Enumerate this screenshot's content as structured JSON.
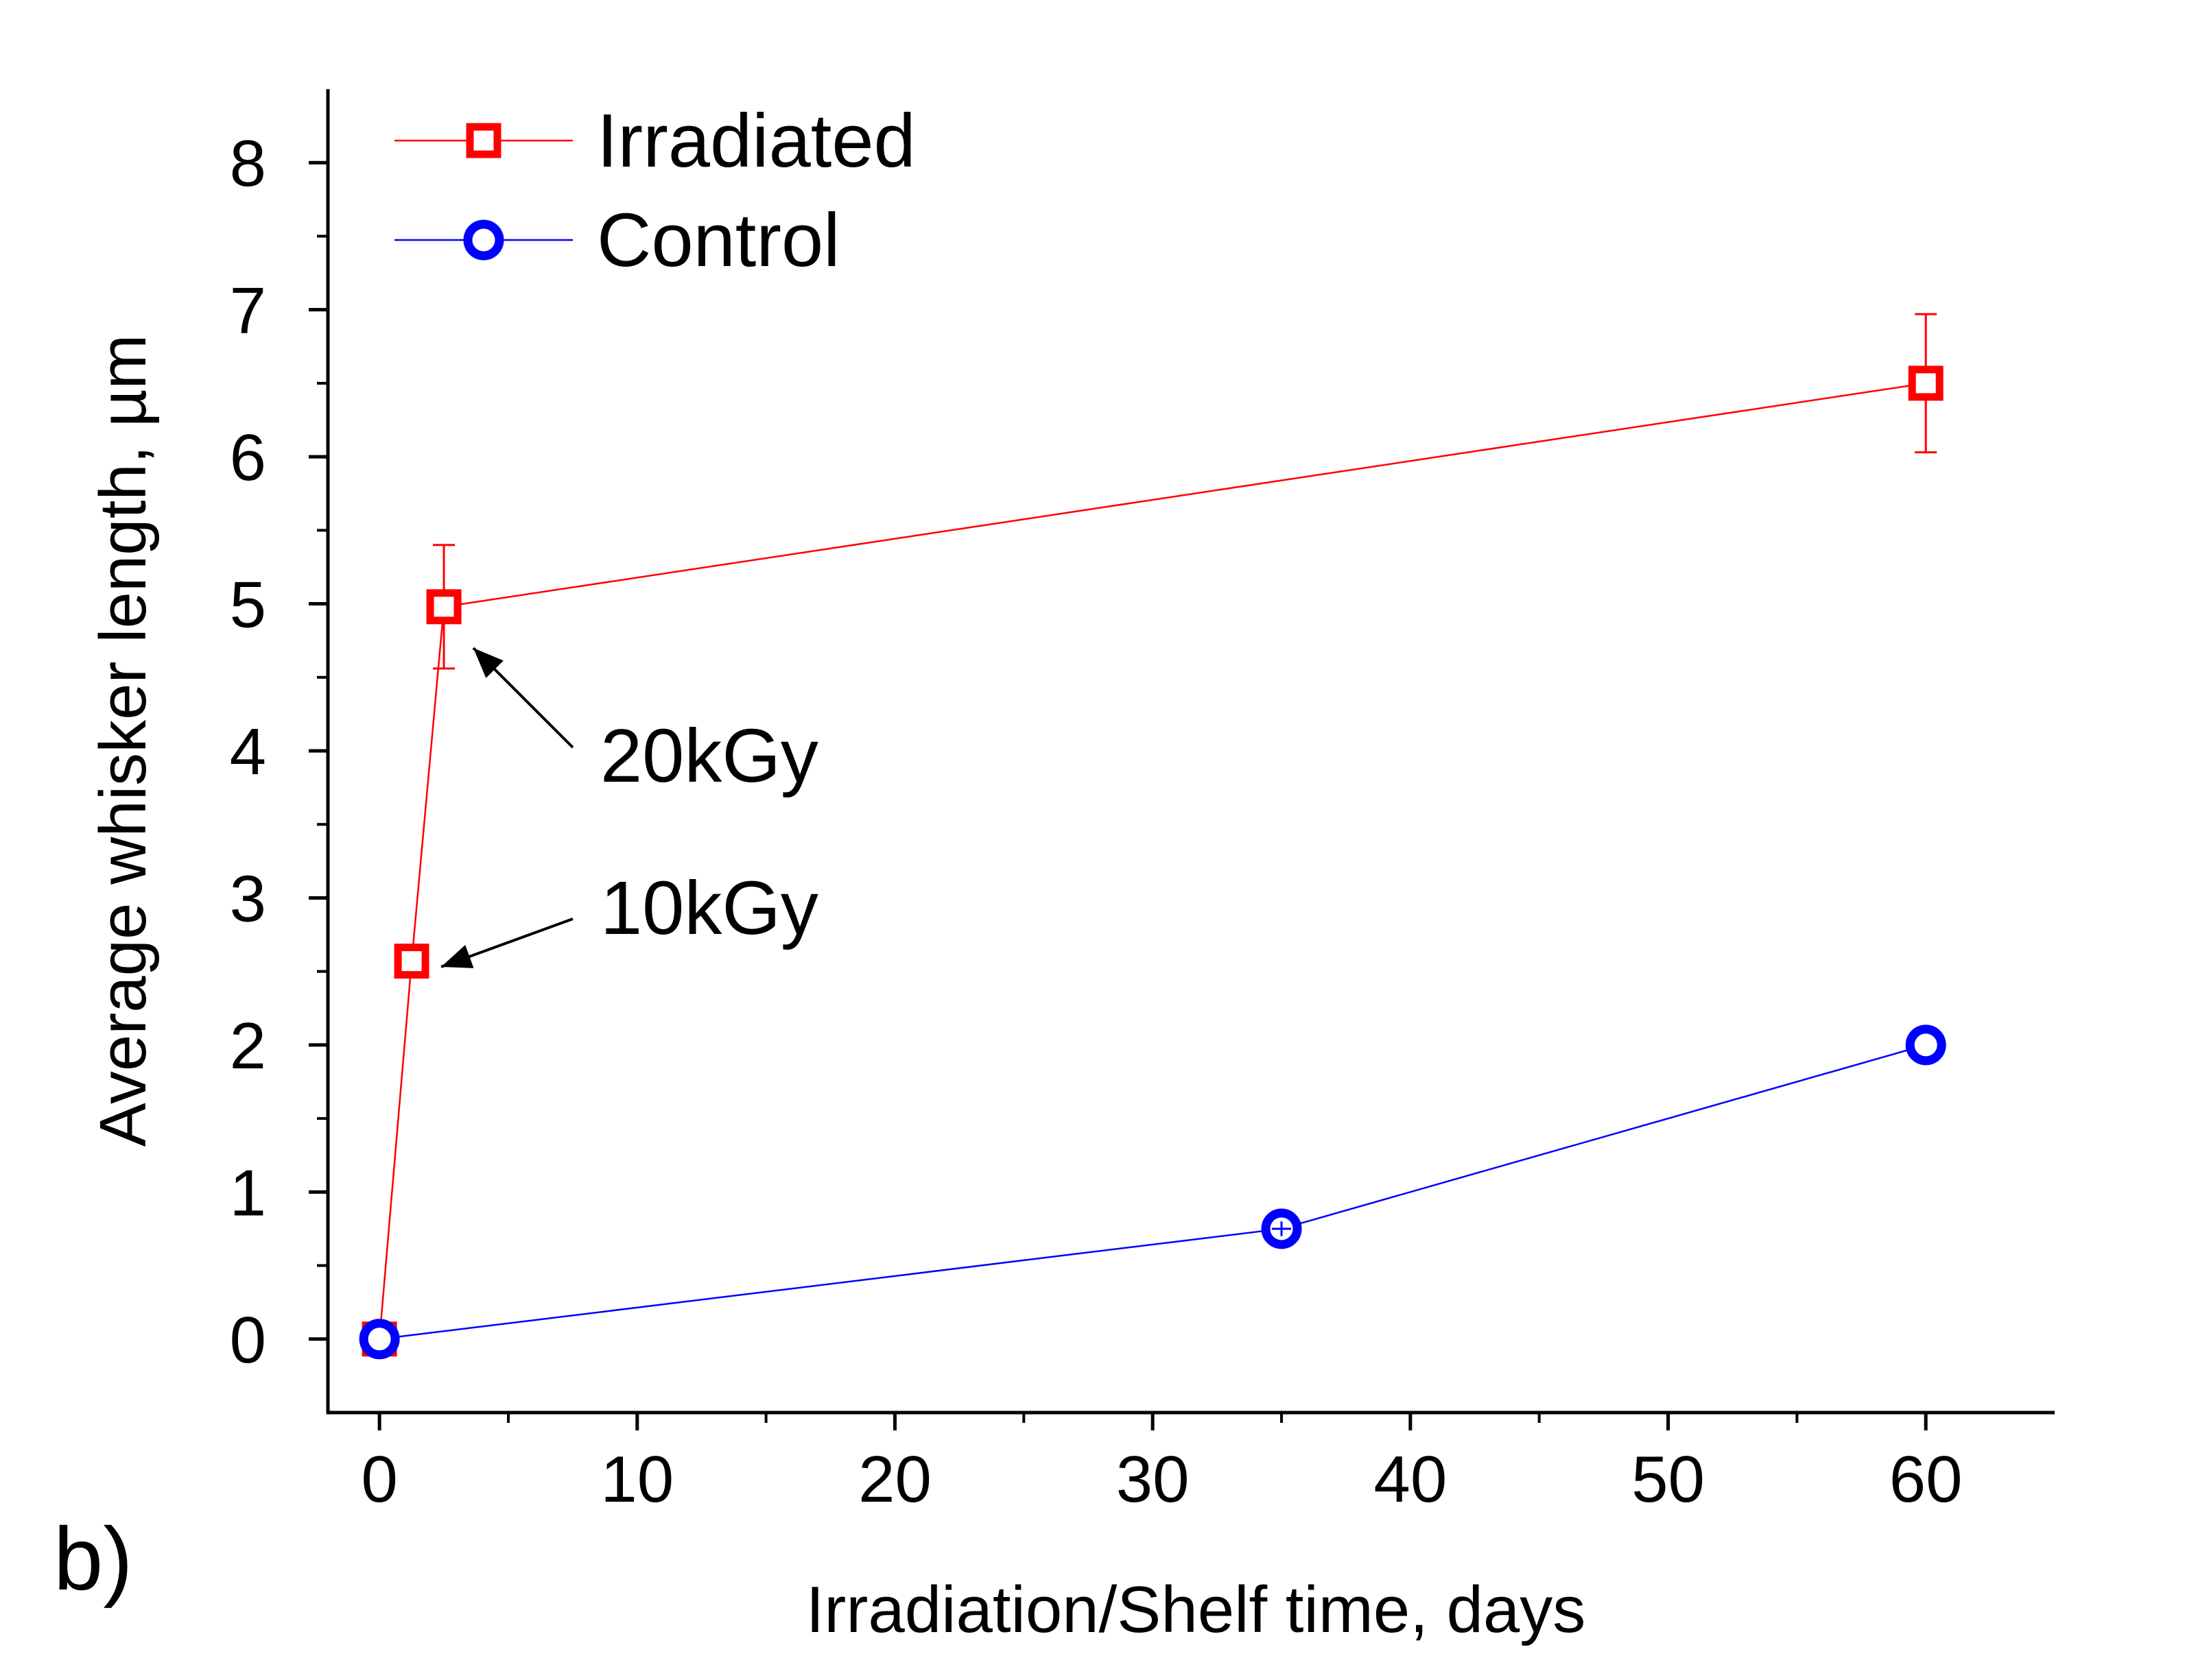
{
  "panel_label": "b)",
  "chart_data": {
    "type": "line",
    "xlabel": "Irradiation/Shelf time, days",
    "ylabel": "Average whisker length, µm",
    "xlim": [
      -2,
      65
    ],
    "ylim": [
      -0.5,
      8.5
    ],
    "x_major_ticks": [
      0,
      10,
      20,
      30,
      40,
      50,
      60
    ],
    "x_tick_labels": [
      "0",
      "10",
      "20",
      "30",
      "40",
      "50",
      "60"
    ],
    "x_minor_ticks": [
      5,
      15,
      25,
      35,
      45,
      55
    ],
    "y_major_ticks": [
      0,
      1,
      2,
      3,
      4,
      5,
      6,
      7,
      8
    ],
    "y_tick_labels": [
      "0",
      "1",
      "2",
      "3",
      "4",
      "5",
      "6",
      "7",
      "8"
    ],
    "y_minor_ticks": [
      0.5,
      1.5,
      2.5,
      3.5,
      4.5,
      5.5,
      6.5,
      7.5
    ],
    "legend_position": "top-left",
    "series": [
      {
        "name": "Irradiated",
        "marker": "square",
        "color": "#ff0000",
        "points": [
          {
            "x": 0,
            "y": 0,
            "err": 0
          },
          {
            "x": 1.25,
            "y": 2.57,
            "err": 0
          },
          {
            "x": 2.5,
            "y": 4.98,
            "err": 0.42
          },
          {
            "x": 60,
            "y": 6.5,
            "err": 0.47
          }
        ]
      },
      {
        "name": "Control",
        "marker": "circle",
        "color": "#0000ff",
        "points": [
          {
            "x": 0,
            "y": 0,
            "err": 0
          },
          {
            "x": 35,
            "y": 0.75,
            "err": 0.05
          },
          {
            "x": 60,
            "y": 2.0,
            "err": 0
          }
        ]
      }
    ],
    "annotations": [
      {
        "text": "20kGy",
        "target_x": 2.5,
        "target_y": 4.98
      },
      {
        "text": "10kGy",
        "target_x": 1.25,
        "target_y": 2.57
      }
    ]
  }
}
